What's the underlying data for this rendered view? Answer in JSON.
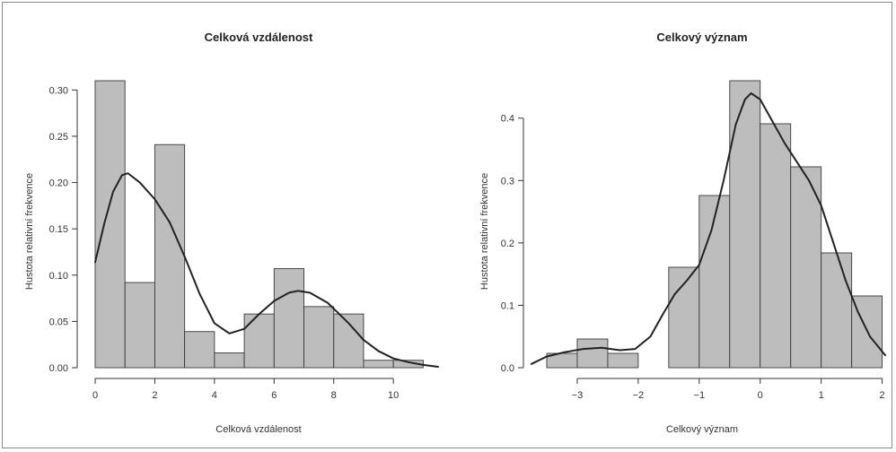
{
  "chart_data": [
    {
      "type": "bar",
      "title": "Celková vzdálenost",
      "xlabel": "Celková vzdálenost",
      "ylabel": "Hustota relativní frekvence",
      "xlim": [
        0,
        11.5
      ],
      "ylim": [
        0,
        0.31
      ],
      "xticks": [
        0,
        2,
        4,
        6,
        8,
        10
      ],
      "xtick_labels": [
        "0",
        "2",
        "4",
        "6",
        "8",
        "10"
      ],
      "yticks": [
        0,
        0.05,
        0.1,
        0.15,
        0.2,
        0.25,
        0.3
      ],
      "ytick_labels": [
        "0.00",
        "0.05",
        "0.10",
        "0.15",
        "0.20",
        "0.25",
        "0.30"
      ],
      "bins": [
        {
          "x0": 0,
          "x1": 1,
          "value": 0.31
        },
        {
          "x0": 1,
          "x1": 2,
          "value": 0.092
        },
        {
          "x0": 2,
          "x1": 3,
          "value": 0.241
        },
        {
          "x0": 3,
          "x1": 4,
          "value": 0.039
        },
        {
          "x0": 4,
          "x1": 5,
          "value": 0.016
        },
        {
          "x0": 5,
          "x1": 6,
          "value": 0.058
        },
        {
          "x0": 6,
          "x1": 7,
          "value": 0.107
        },
        {
          "x0": 7,
          "x1": 8,
          "value": 0.066
        },
        {
          "x0": 8,
          "x1": 9,
          "value": 0.058
        },
        {
          "x0": 9,
          "x1": 10,
          "value": 0.008
        },
        {
          "x0": 10,
          "x1": 11,
          "value": 0.008
        }
      ],
      "density_curve": [
        [
          0,
          0.114
        ],
        [
          0.3,
          0.155
        ],
        [
          0.6,
          0.19
        ],
        [
          0.9,
          0.208
        ],
        [
          1.1,
          0.21
        ],
        [
          1.5,
          0.2
        ],
        [
          2,
          0.182
        ],
        [
          2.5,
          0.157
        ],
        [
          3,
          0.12
        ],
        [
          3.5,
          0.08
        ],
        [
          4,
          0.048
        ],
        [
          4.5,
          0.037
        ],
        [
          5,
          0.042
        ],
        [
          5.5,
          0.058
        ],
        [
          6,
          0.072
        ],
        [
          6.5,
          0.081
        ],
        [
          6.8,
          0.083
        ],
        [
          7.2,
          0.081
        ],
        [
          7.8,
          0.07
        ],
        [
          8.5,
          0.048
        ],
        [
          9,
          0.03
        ],
        [
          9.5,
          0.018
        ],
        [
          10,
          0.01
        ],
        [
          10.5,
          0.006
        ],
        [
          11,
          0.003
        ],
        [
          11.5,
          0.001
        ]
      ]
    },
    {
      "type": "bar",
      "title": "Celkový význam",
      "xlabel": "Celkový význam",
      "ylabel": "Hustota relativní frekvence",
      "xlim": [
        -3.75,
        2.05
      ],
      "ylim": [
        0,
        0.46
      ],
      "xticks": [
        -3,
        -2,
        -1,
        0,
        1,
        2
      ],
      "xtick_labels": [
        "−3",
        "−2",
        "−1",
        "0",
        "1",
        "2"
      ],
      "yticks": [
        0,
        0.1,
        0.2,
        0.3,
        0.4
      ],
      "ytick_labels": [
        "0.0",
        "0.1",
        "0.2",
        "0.3",
        "0.4"
      ],
      "bins": [
        {
          "x0": -3.5,
          "x1": -3.0,
          "value": 0.023
        },
        {
          "x0": -3.0,
          "x1": -2.5,
          "value": 0.046
        },
        {
          "x0": -2.5,
          "x1": -2.0,
          "value": 0.023
        },
        {
          "x0": -2.0,
          "x1": -1.5,
          "value": 0.0
        },
        {
          "x0": -1.5,
          "x1": -1.0,
          "value": 0.161
        },
        {
          "x0": -1.0,
          "x1": -0.5,
          "value": 0.276
        },
        {
          "x0": -0.5,
          "x1": 0.0,
          "value": 0.46
        },
        {
          "x0": 0.0,
          "x1": 0.5,
          "value": 0.391
        },
        {
          "x0": 0.5,
          "x1": 1.0,
          "value": 0.322
        },
        {
          "x0": 1.0,
          "x1": 1.5,
          "value": 0.184
        },
        {
          "x0": 1.5,
          "x1": 2.0,
          "value": 0.115
        }
      ],
      "density_curve": [
        [
          -3.75,
          0.006
        ],
        [
          -3.5,
          0.018
        ],
        [
          -3.2,
          0.025
        ],
        [
          -2.9,
          0.03
        ],
        [
          -2.6,
          0.032
        ],
        [
          -2.3,
          0.028
        ],
        [
          -2.05,
          0.03
        ],
        [
          -1.8,
          0.05
        ],
        [
          -1.6,
          0.085
        ],
        [
          -1.4,
          0.118
        ],
        [
          -1.2,
          0.14
        ],
        [
          -1.0,
          0.165
        ],
        [
          -0.8,
          0.22
        ],
        [
          -0.6,
          0.3
        ],
        [
          -0.4,
          0.39
        ],
        [
          -0.25,
          0.43
        ],
        [
          -0.15,
          0.44
        ],
        [
          0.0,
          0.43
        ],
        [
          0.2,
          0.395
        ],
        [
          0.4,
          0.36
        ],
        [
          0.6,
          0.33
        ],
        [
          0.8,
          0.3
        ],
        [
          1.0,
          0.26
        ],
        [
          1.2,
          0.2
        ],
        [
          1.4,
          0.14
        ],
        [
          1.6,
          0.09
        ],
        [
          1.8,
          0.05
        ],
        [
          2.05,
          0.02
        ]
      ]
    }
  ]
}
